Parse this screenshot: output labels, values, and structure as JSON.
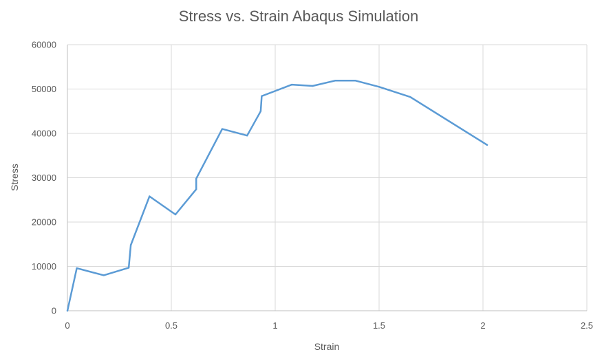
{
  "chart_data": {
    "type": "line",
    "title": "Stress vs. Strain Abaqus Simulation",
    "xlabel": "Strain",
    "ylabel": "Stress",
    "xlim": [
      0,
      2.5
    ],
    "ylim": [
      0,
      60000
    ],
    "x_ticks": [
      "0",
      "0.5",
      "1",
      "1.5",
      "2",
      "2.5"
    ],
    "y_ticks": [
      "0",
      "10000",
      "20000",
      "30000",
      "40000",
      "50000",
      "60000"
    ],
    "grid": true,
    "legend": "none",
    "series": [
      {
        "color": "#5b9bd5",
        "points": [
          [
            0,
            0
          ],
          [
            0.045,
            9600
          ],
          [
            0.175,
            8000
          ],
          [
            0.295,
            9700
          ],
          [
            0.305,
            14800
          ],
          [
            0.395,
            25800
          ],
          [
            0.52,
            21700
          ],
          [
            0.62,
            27400
          ],
          [
            0.62,
            29800
          ],
          [
            0.745,
            41000
          ],
          [
            0.865,
            39500
          ],
          [
            0.93,
            45000
          ],
          [
            0.935,
            48400
          ],
          [
            1.08,
            51000
          ],
          [
            1.18,
            50700
          ],
          [
            1.29,
            51900
          ],
          [
            1.385,
            51900
          ],
          [
            1.5,
            50500
          ],
          [
            1.65,
            48200
          ],
          [
            2.02,
            37400
          ]
        ]
      }
    ]
  }
}
